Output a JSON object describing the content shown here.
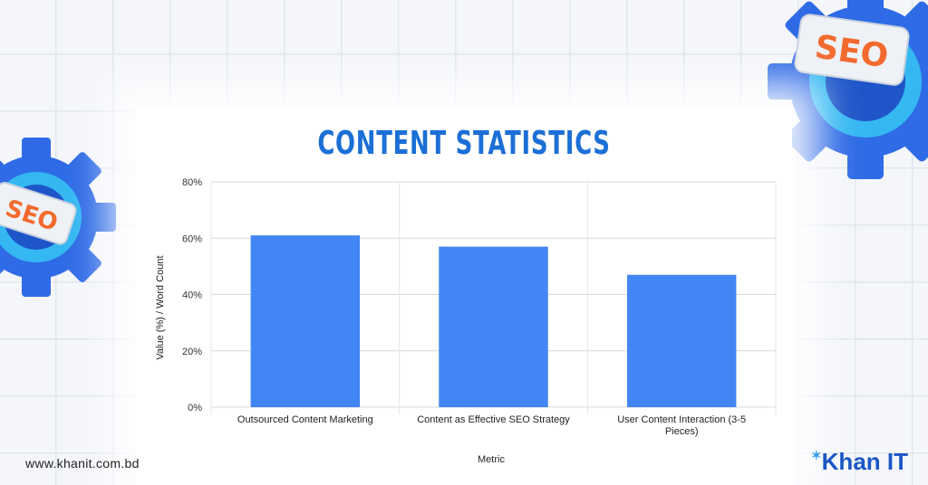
{
  "brand": {
    "website": "www.khanit.com.bd",
    "logo_text": "Khan IT"
  },
  "decor": {
    "badge_left": "SEO",
    "badge_right": "SEO"
  },
  "colors": {
    "bar": "#4285f4",
    "title": "#1b6fd6",
    "gear_blue": "#2f6be6",
    "gear_ring": "#35b8f2"
  },
  "chart_data": {
    "type": "bar",
    "title": "CONTENT STATISTICS",
    "xlabel": "Metric",
    "ylabel": "Value (%) / Word Count",
    "categories": [
      "Outsourced Content Marketing",
      "Content as Effective SEO Strategy",
      "User Content Interaction (3-5 Pieces)"
    ],
    "category_lines": [
      [
        "Outsourced Content Marketing"
      ],
      [
        "Content as Effective SEO Strategy"
      ],
      [
        "User Content Interaction (3-5",
        "Pieces)"
      ]
    ],
    "values": [
      61,
      57,
      47
    ],
    "ylim": [
      0,
      80
    ],
    "yticks": [
      0,
      20,
      40,
      60,
      80
    ],
    "ytick_labels": [
      "0%",
      "20%",
      "40%",
      "60%",
      "80%"
    ],
    "grid": true,
    "legend": "none"
  }
}
